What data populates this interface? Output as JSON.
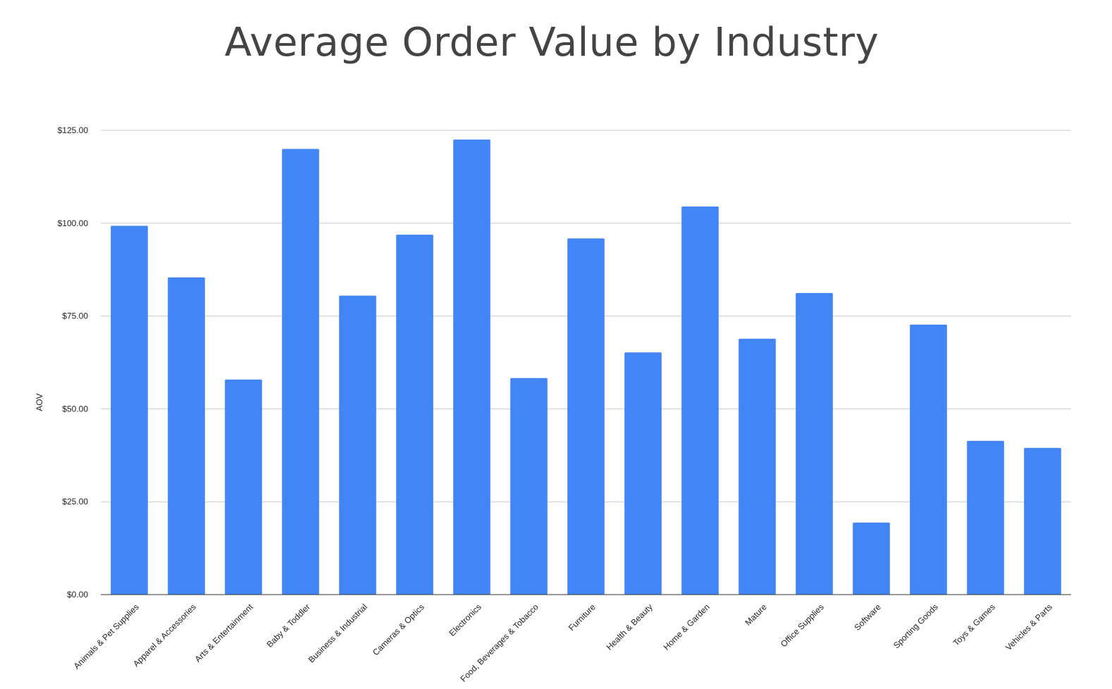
{
  "chart_data": {
    "type": "bar",
    "title": "Average Order Value by Industry",
    "xlabel": "",
    "ylabel": "AOV",
    "ylim": [
      0,
      125
    ],
    "yticks": [
      0,
      25,
      50,
      75,
      100,
      125
    ],
    "ytick_labels": [
      "$0.00",
      "$25.00",
      "$50.00",
      "$75.00",
      "$100.00",
      "$125.00"
    ],
    "grid": true,
    "legend": "none",
    "bar_color": "#4285f4",
    "categories": [
      "Animals & Pet Supplies",
      "Apparel & Accessories",
      "Arts & Entertainment",
      "Baby & Toddler",
      "Business & Industrial",
      "Cameras & Optics",
      "Electronics",
      "Food, Beverages & Tobacco",
      "Furniture",
      "Health & Beauty",
      "Home & Garden",
      "Mature",
      "Office Supplies",
      "Software",
      "Sporting Goods",
      "Toys & Games",
      "Vehicles & Parts"
    ],
    "values": [
      99.3,
      85.4,
      57.9,
      120.0,
      80.5,
      96.9,
      122.5,
      58.3,
      95.9,
      65.2,
      104.5,
      68.9,
      81.2,
      19.4,
      72.7,
      41.4,
      39.5
    ]
  }
}
